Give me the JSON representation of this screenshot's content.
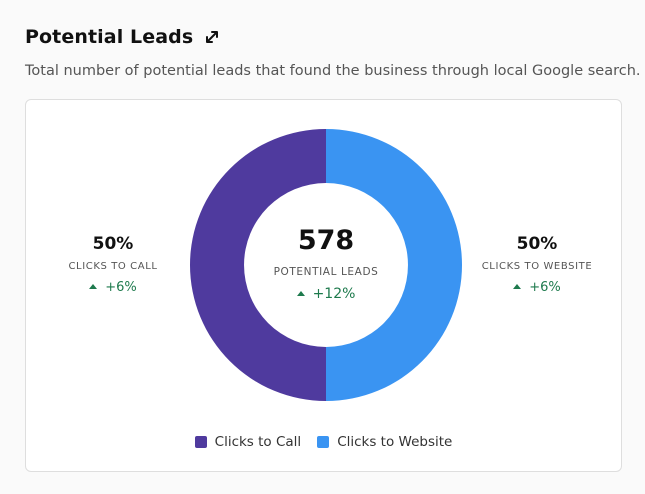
{
  "header": {
    "title": "Potential Leads",
    "expand_icon": "expand-arrows-icon",
    "subtitle": "Total number of potential leads that found the business through local Google search."
  },
  "center": {
    "value": "578",
    "label": "POTENTIAL LEADS",
    "change": "+12%"
  },
  "left_stat": {
    "value": "50%",
    "label": "CLICKS TO CALL",
    "change": "+6%"
  },
  "right_stat": {
    "value": "50%",
    "label": "CLICKS TO WEBSITE",
    "change": "+6%"
  },
  "colors": {
    "call": "#4f3a9e",
    "website": "#3a94f2",
    "positive": "#1e7a4d"
  },
  "chart_data": {
    "type": "pie",
    "donut": true,
    "categories": [
      "Clicks to Call",
      "Clicks to Website"
    ],
    "values": [
      50,
      50
    ],
    "colors": [
      "#4f3a9e",
      "#3a94f2"
    ],
    "legend": "bottom"
  }
}
